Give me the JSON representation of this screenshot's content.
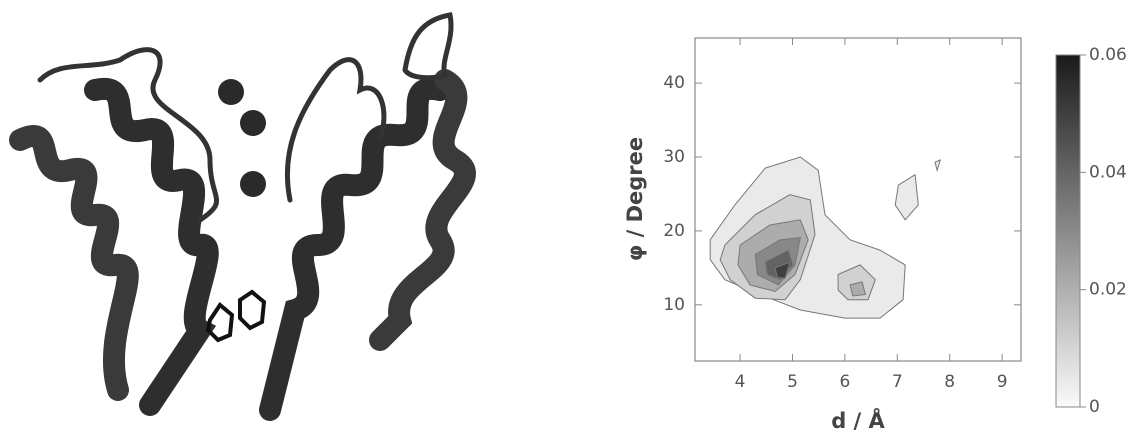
{
  "chart_data": {
    "type": "contour",
    "x_label": "d / Å",
    "y_label": "φ / Degree",
    "xlim": [
      3.14,
      9.36
    ],
    "ylim": [
      2.4,
      46.1
    ],
    "xticks": [
      4,
      5,
      6,
      7,
      8,
      9
    ],
    "yticks": [
      10,
      20,
      30,
      40
    ],
    "colorbar_lim": [
      0,
      0.06
    ],
    "colorbar_ticks": [
      0,
      0.02,
      0.04,
      0.06
    ],
    "contours": [
      {
        "level": 0.003,
        "x": [
          3.43,
          3.9,
          4.48,
          5.15,
          5.49,
          5.62,
          6.1,
          6.67,
          7.15,
          7.11,
          6.67,
          6.0,
          5.15,
          4.38,
          3.71,
          3.43
        ],
        "y": [
          18.8,
          23.5,
          28.5,
          30,
          28.2,
          22.2,
          18.8,
          17.4,
          15.4,
          10.7,
          8.2,
          8.2,
          9.3,
          11.4,
          13.4,
          16.1
        ]
      },
      {
        "level": 0.003,
        "x": [
          7.02,
          7.34,
          7.4,
          7.15,
          6.96
        ],
        "y": [
          26.2,
          27.6,
          23.5,
          21.5,
          23.5
        ]
      },
      {
        "level": 0.003,
        "x": [
          7.72,
          7.82,
          7.76
        ],
        "y": [
          29.3,
          29.6,
          28.2
        ]
      },
      {
        "level": 0.01,
        "x": [
          3.71,
          4.29,
          4.95,
          5.34,
          5.43,
          5.15,
          4.86,
          4.29,
          3.81,
          3.62
        ],
        "y": [
          18.1,
          22.2,
          24.9,
          24.2,
          19.5,
          13.4,
          10.7,
          10.9,
          13.4,
          16.1
        ]
      },
      {
        "level": 0.01,
        "x": [
          5.87,
          6.29,
          6.58,
          6.44,
          6.06,
          5.87
        ],
        "y": [
          14.1,
          15.4,
          13.4,
          10.7,
          10.7,
          12
        ]
      },
      {
        "level": 0.02,
        "x": [
          4,
          4.57,
          5.15,
          5.3,
          5.05,
          4.67,
          4.19,
          3.96
        ],
        "y": [
          18.1,
          20.8,
          21.5,
          18.8,
          14.1,
          11.8,
          12.7,
          15.4
        ]
      },
      {
        "level": 0.02,
        "x": [
          6.1,
          6.33,
          6.39,
          6.15
        ],
        "y": [
          12.7,
          13.1,
          11.4,
          11.2
        ]
      },
      {
        "level": 0.03,
        "x": [
          4.29,
          4.76,
          5.15,
          5.05,
          4.73,
          4.33
        ],
        "y": [
          16.8,
          18.8,
          19.1,
          15.4,
          12.7,
          14.1
        ]
      },
      {
        "level": 0.04,
        "x": [
          4.48,
          4.92,
          5.01,
          4.76,
          4.52
        ],
        "y": [
          15.8,
          17.4,
          15.4,
          13.4,
          14.1
        ]
      },
      {
        "level": 0.05,
        "x": [
          4.67,
          4.95,
          4.86,
          4.71
        ],
        "y": [
          15,
          15.8,
          13.6,
          13.7
        ]
      }
    ]
  }
}
